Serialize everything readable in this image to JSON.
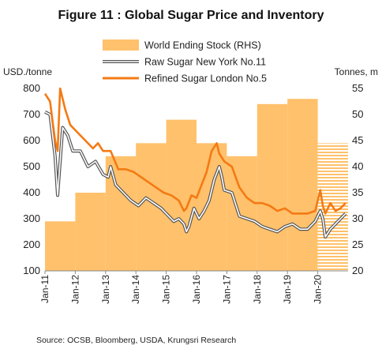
{
  "title": "Figure 11 : Global Sugar Price and Inventory",
  "source": "Source: OCSB, Bloomberg, USDA, Krungsri Research",
  "colors": {
    "stock_fill": "#FFC16B",
    "raw_line_outer": "#555555",
    "raw_line_inner": "#ffffff",
    "refined_line": "#F47A14",
    "axis_text": "#222222"
  },
  "chart_data": {
    "type": "bar+line",
    "y_left": {
      "label": "USD./tonne",
      "range": [
        100,
        800
      ],
      "ticks": [
        100,
        200,
        300,
        400,
        500,
        600,
        700,
        800
      ]
    },
    "y_right": {
      "label": "Tonnes, m",
      "range": [
        20,
        55
      ],
      "ticks": [
        20,
        25,
        30,
        35,
        40,
        45,
        50,
        55
      ]
    },
    "x": {
      "range": [
        "2011-01",
        "2020-12"
      ],
      "tick_labels": [
        "Jan-11",
        "Jan-12",
        "Jan-13",
        "Jan-14",
        "Jan-15",
        "Jan-16",
        "Jan-17",
        "Jan-18",
        "Jan-19",
        "Jan-20"
      ]
    },
    "legend": [
      "World Ending Stock (RHS)",
      "Raw Sugar New York No.11",
      "Refined Sugar London No.5"
    ],
    "legend_position": "top",
    "grid": false,
    "stock_bars": [
      {
        "start": "2011-01",
        "end": "2011-12",
        "value": 29.5,
        "forecast": false
      },
      {
        "start": "2012-01",
        "end": "2012-12",
        "value": 35,
        "forecast": false
      },
      {
        "start": "2013-01",
        "end": "2013-12",
        "value": 42,
        "forecast": false
      },
      {
        "start": "2014-01",
        "end": "2014-12",
        "value": 44.5,
        "forecast": false
      },
      {
        "start": "2015-01",
        "end": "2015-12",
        "value": 49,
        "forecast": false
      },
      {
        "start": "2016-01",
        "end": "2016-12",
        "value": 44.5,
        "forecast": false
      },
      {
        "start": "2017-01",
        "end": "2017-12",
        "value": 42,
        "forecast": false
      },
      {
        "start": "2018-01",
        "end": "2018-12",
        "value": 52,
        "forecast": false
      },
      {
        "start": "2019-01",
        "end": "2019-12",
        "value": 53,
        "forecast": false
      },
      {
        "start": "2020-01",
        "end": "2020-12",
        "value": 44.5,
        "forecast": true
      }
    ],
    "series": [
      {
        "name": "Raw Sugar New York No.11",
        "x": [
          "2011-01",
          "2011-03",
          "2011-05",
          "2011-06",
          "2011-08",
          "2011-10",
          "2011-12",
          "2012-03",
          "2012-06",
          "2012-09",
          "2012-12",
          "2013-02",
          "2013-03",
          "2013-05",
          "2013-08",
          "2013-11",
          "2014-02",
          "2014-05",
          "2014-08",
          "2014-11",
          "2015-01",
          "2015-04",
          "2015-06",
          "2015-08",
          "2015-09",
          "2015-10",
          "2015-12",
          "2016-02",
          "2016-04",
          "2016-06",
          "2016-08",
          "2016-10",
          "2016-11",
          "2016-12",
          "2017-03",
          "2017-06",
          "2017-09",
          "2017-12",
          "2018-03",
          "2018-06",
          "2018-09",
          "2018-12",
          "2019-03",
          "2019-06",
          "2019-09",
          "2019-12",
          "2020-02",
          "2020-03",
          "2020-04",
          "2020-06",
          "2020-08",
          "2020-10",
          "2020-12"
        ],
        "values": [
          710,
          700,
          540,
          390,
          650,
          620,
          560,
          560,
          500,
          520,
          470,
          460,
          500,
          430,
          400,
          370,
          350,
          380,
          360,
          340,
          320,
          290,
          300,
          280,
          250,
          270,
          340,
          300,
          330,
          370,
          450,
          500,
          460,
          410,
          400,
          310,
          300,
          290,
          270,
          260,
          250,
          270,
          280,
          260,
          260,
          290,
          330,
          300,
          230,
          260,
          280,
          300,
          320
        ]
      },
      {
        "name": "Refined Sugar London No.5",
        "x": [
          "2011-01",
          "2011-03",
          "2011-05",
          "2011-06",
          "2011-07",
          "2011-09",
          "2011-11",
          "2012-02",
          "2012-05",
          "2012-08",
          "2012-10",
          "2012-12",
          "2013-03",
          "2013-06",
          "2013-09",
          "2013-12",
          "2014-03",
          "2014-06",
          "2014-09",
          "2014-12",
          "2015-03",
          "2015-06",
          "2015-08",
          "2015-09",
          "2015-11",
          "2016-01",
          "2016-03",
          "2016-05",
          "2016-07",
          "2016-09",
          "2016-10",
          "2016-12",
          "2017-03",
          "2017-06",
          "2017-09",
          "2017-12",
          "2018-03",
          "2018-06",
          "2018-09",
          "2018-12",
          "2019-03",
          "2019-06",
          "2019-09",
          "2019-12",
          "2020-02",
          "2020-03",
          "2020-04",
          "2020-06",
          "2020-08",
          "2020-10",
          "2020-12"
        ],
        "values": [
          780,
          750,
          600,
          560,
          800,
          720,
          660,
          630,
          600,
          570,
          590,
          560,
          560,
          490,
          490,
          480,
          460,
          440,
          420,
          400,
          390,
          370,
          330,
          340,
          390,
          380,
          430,
          480,
          560,
          590,
          550,
          520,
          500,
          420,
          380,
          360,
          360,
          350,
          330,
          340,
          320,
          320,
          320,
          330,
          410,
          350,
          320,
          360,
          330,
          340,
          360
        ]
      }
    ]
  }
}
